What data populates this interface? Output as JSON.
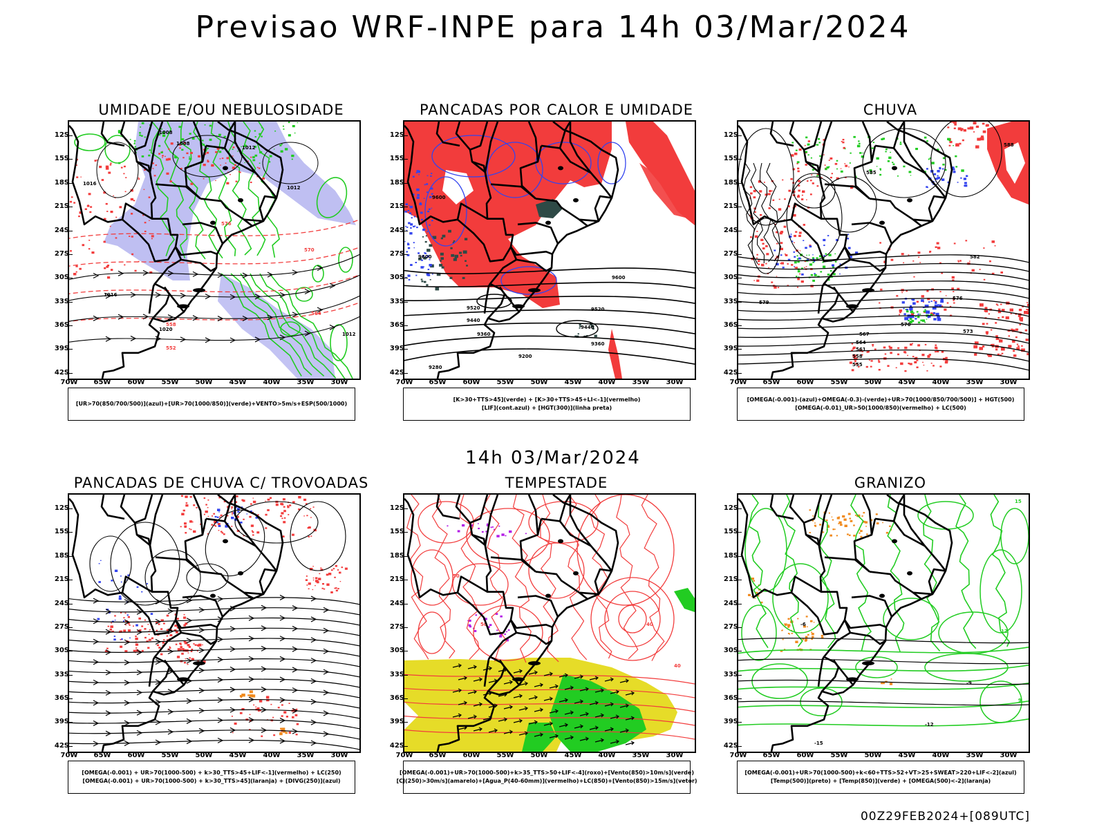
{
  "header": {
    "title": "Previsao WRF-INPE  para 14h 03/Mar/2024",
    "mid_time": "14h 03/Mar/2024",
    "footer": "00Z29FEB2024+[089UTC]"
  },
  "axes": {
    "lat_labels": [
      "12S",
      "15S",
      "18S",
      "21S",
      "24S",
      "27S",
      "30S",
      "33S",
      "36S",
      "39S",
      "42S"
    ],
    "lon_labels": [
      "70W",
      "65W",
      "60W",
      "55W",
      "50W",
      "45W",
      "40W",
      "35W",
      "30W"
    ]
  },
  "colors": {
    "red": "#f23c3c",
    "green": "#22cc22",
    "blue": "#3344ee",
    "lavender": "#b4b4f0",
    "darkteal": "#2e4a46",
    "yellow": "#e6dc28",
    "orange": "#f08a1e",
    "purple": "#b41ee6",
    "black": "#000000"
  },
  "panels": [
    {
      "id": "umidade",
      "title": "UMIDADE E/OU NEBULOSIDADE",
      "legend": [
        "[UR>70(850/700/500)](azul)+[UR>70(1000/850)](verde)+VENTO>5m/s+ESP(500/1000)"
      ],
      "labels": [
        "1008",
        "1008",
        "1012",
        "1016",
        "1012",
        "576",
        "1016",
        "1020",
        "1012",
        "570",
        "564",
        "558",
        "552"
      ]
    },
    {
      "id": "pancadas-calor",
      "title": "PANCADAS POR CALOR E UMIDADE",
      "legend": [
        "[K>30+TTS>45](verde) + [K>30+TTS>45+LI<-1](vermelho)",
        "[LIF](cont.azul) + [HGT(300)](linha preta)"
      ],
      "labels": [
        "9600",
        "9600",
        "9600",
        "9520",
        "9520",
        "9440",
        "9440",
        "9360",
        "9360",
        "9280",
        "9200"
      ]
    },
    {
      "id": "chuva",
      "title": "CHUVA",
      "legend": [
        "[OMEGA(-0.001)-(azul)+OMEGA(-0.3)-(verde)+UR>70(1000/850/700/500)] + HGT(500)",
        "[OMEGA(-0.01)_UR>50(1000/850)(vermelho) + LC(500)"
      ],
      "labels": [
        "588",
        "585",
        "582",
        "579",
        "576",
        "573",
        "570",
        "567",
        "564",
        "561",
        "558",
        "555"
      ]
    },
    {
      "id": "trovoadas",
      "title": "PANCADAS DE CHUVA C/ TROVOADAS",
      "legend": [
        "[OMEGA(-0.001) + UR>70(1000-500) + k>30_TTS>45+LIF<-1](vermelho) + LC(250)",
        "[OMEGA(-0.001) + UR>70(1000-500) + k>30_TTS>45](laranja) + [DIVG(250)](azul)"
      ],
      "labels": []
    },
    {
      "id": "tempestade",
      "title": "TEMPESTADE",
      "legend": [
        "[OMEGA(-0.001)+UR>70(1000-500)+k>35_TTS>50+LIF<-4](roxo)+[Vento(850)>10m/s](verde)",
        "[CJ(250)>30m/s](amarelo)+[Agua_P(40-60mm)](vermelho)+LC(850)+[Vento(850)>15m/s](vetor)"
      ],
      "labels": [
        "50",
        "50",
        "40",
        "40"
      ]
    },
    {
      "id": "granizo",
      "title": "GRANIZO",
      "legend": [
        "[OMEGA(-0.001)+UR>70(1000-500)+k<60+TTS>52+VT>25+SWEAT>220+LIF<-2](azul)",
        "[Temp(500)](preto) + [Temp(850)](verde) + [OMEGA(500)<-2](laranja)"
      ],
      "labels": [
        "-15",
        "-12",
        "-9",
        "-6",
        "15",
        "12",
        "9"
      ]
    }
  ]
}
